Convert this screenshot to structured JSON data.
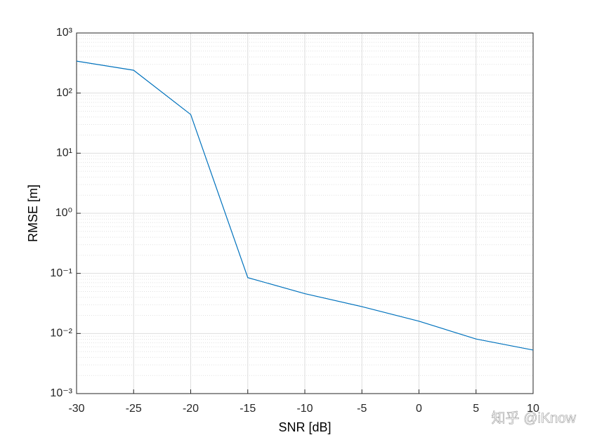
{
  "chart_data": {
    "type": "line",
    "xlabel": "SNR [dB]",
    "ylabel": "RMSE [m]",
    "x": [
      -30,
      -25,
      -20,
      -15,
      -10,
      -5,
      0,
      5,
      10
    ],
    "values": [
      340,
      240,
      44,
      0.085,
      0.046,
      0.028,
      0.016,
      0.0081,
      0.0053
    ],
    "color": "#0072bd",
    "log_y": true,
    "grid": true,
    "minor_grid": true,
    "xlim": [
      -30,
      10
    ],
    "xticks": [
      -30,
      -25,
      -20,
      -15,
      -10,
      -5,
      0,
      5,
      10
    ],
    "ylim": [
      0.001,
      1000
    ],
    "yticks": [
      {
        "value": 0.001,
        "label": "10⁻³"
      },
      {
        "value": 0.01,
        "label": "10⁻²"
      },
      {
        "value": 0.1,
        "label": "10⁻¹"
      },
      {
        "value": 1,
        "label": "10⁰"
      },
      {
        "value": 10,
        "label": "10¹"
      },
      {
        "value": 100,
        "label": "10²"
      },
      {
        "value": 1000,
        "label": "10³"
      }
    ]
  },
  "watermark": "知乎 @iKnow"
}
